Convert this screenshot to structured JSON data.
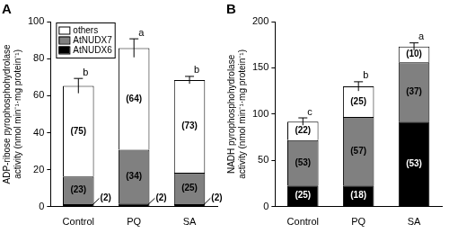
{
  "chart_data": [
    {
      "type": "bar",
      "title": "A",
      "stacked": true,
      "grid": false,
      "legend": "top-left",
      "y_label": [
        "ADP-ribose pyrophosphohydrolase",
        "activity (nmol min⁻¹·mg protein⁻¹)"
      ],
      "categories": [
        "Control",
        "PQ",
        "SA"
      ],
      "series": [
        {
          "name": "AtNUDX6",
          "color": "#000000",
          "values": [
            1.3,
            1.7,
            1.4
          ],
          "segment_labels": [
            "(2)",
            "(2)",
            "(2)"
          ]
        },
        {
          "name": "AtNUDX7",
          "color": "#808080",
          "values": [
            15,
            29,
            17
          ],
          "segment_labels": [
            "(23)",
            "(34)",
            "(25)"
          ]
        },
        {
          "name": "others",
          "color": "#ffffff",
          "values": [
            49,
            55,
            50
          ],
          "segment_labels": [
            "(75)",
            "(64)",
            "(73)"
          ]
        }
      ],
      "errors": [
        4,
        5,
        2
      ],
      "significance": [
        "b",
        "a",
        "b"
      ],
      "ylim": [
        0,
        100
      ],
      "yticks": [
        0,
        20,
        40,
        60,
        80,
        100
      ]
    },
    {
      "type": "bar",
      "title": "B",
      "stacked": true,
      "grid": false,
      "y_label": [
        "NADH pyrophosphohydrolase",
        "activity (nmol min⁻¹·mg protein⁻¹)"
      ],
      "categories": [
        "Control",
        "PQ",
        "SA"
      ],
      "series": [
        {
          "name": "AtNUDX6",
          "color": "#000000",
          "values": [
            23,
            23,
            92
          ],
          "segment_labels": [
            "(25)",
            "(18)",
            "(53)"
          ]
        },
        {
          "name": "AtNUDX7",
          "color": "#808080",
          "values": [
            49,
            74,
            64
          ],
          "segment_labels": [
            "(53)",
            "(57)",
            "(37)"
          ]
        },
        {
          "name": "others",
          "color": "#ffffff",
          "values": [
            20,
            33,
            17
          ],
          "segment_labels": [
            "(22)",
            "(25)",
            "(10)"
          ]
        }
      ],
      "errors": [
        4,
        5,
        4
      ],
      "significance": [
        "c",
        "b",
        "a"
      ],
      "ylim": [
        0,
        200
      ],
      "yticks": [
        0,
        50,
        100,
        150,
        200
      ]
    }
  ]
}
